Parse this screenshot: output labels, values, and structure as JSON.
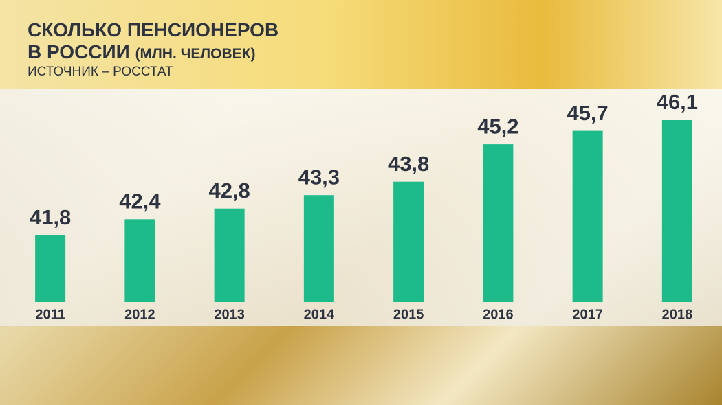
{
  "chart_data": {
    "type": "bar",
    "title": "СКОЛЬКО ПЕНСИОНЕРОВ В РОССИИ",
    "subtitle": "(МЛН. ЧЕЛОВЕК)",
    "source": "ИСТОЧНИК – РОССТАТ",
    "categories": [
      "2011",
      "2012",
      "2013",
      "2014",
      "2015",
      "2016",
      "2017",
      "2018"
    ],
    "values": [
      41.8,
      42.4,
      42.8,
      43.3,
      43.8,
      45.2,
      45.7,
      46.1
    ],
    "value_labels": [
      "41,8",
      "42,4",
      "42,8",
      "43,3",
      "43,8",
      "45,2",
      "45,7",
      "46,1"
    ],
    "color": "#1dbb8a"
  }
}
